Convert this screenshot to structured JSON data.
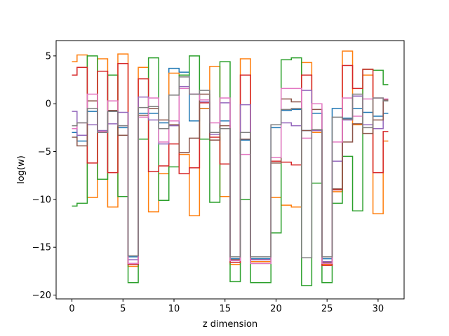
{
  "chart_data": {
    "type": "line",
    "drawstyle": "steps-mid",
    "title": "",
    "xlabel": "z dimension",
    "ylabel": "log(w)",
    "xlim": [
      -1.55,
      32.55
    ],
    "ylim": [
      -20.4,
      6.6
    ],
    "xticks": [
      0,
      5,
      10,
      15,
      20,
      25,
      30
    ],
    "yticks": [
      -20,
      -15,
      -10,
      -5,
      0,
      5
    ],
    "grid": false,
    "legend": "none",
    "x": [
      0,
      1,
      2,
      3,
      4,
      5,
      6,
      7,
      8,
      9,
      10,
      11,
      12,
      13,
      14,
      15,
      16,
      17,
      18,
      19,
      20,
      21,
      22,
      23,
      24,
      25,
      26,
      27,
      28,
      29,
      30,
      31
    ],
    "series": [
      {
        "color": "#1f77b4",
        "values": [
          -3.0,
          -3.9,
          -0.8,
          -3.0,
          -0.8,
          -2.5,
          -16.0,
          -1.0,
          -1.0,
          -2.0,
          3.7,
          3.3,
          -1.8,
          -0.5,
          -3.0,
          -1.8,
          -16.2,
          -3.8,
          -16.2,
          -16.2,
          -2.5,
          -0.7,
          -0.6,
          -2.8,
          -1.0,
          -16.2,
          -0.5,
          -1.5,
          -0.5,
          -0.9,
          -1.3,
          -1.0
        ]
      },
      {
        "color": "#ff7f0e",
        "values": [
          4.4,
          5.1,
          -9.8,
          4.7,
          -10.8,
          5.2,
          -17.0,
          3.8,
          -11.3,
          -7.3,
          3.2,
          -5.3,
          -11.7,
          -0.5,
          3.9,
          -9.7,
          -16.8,
          4.7,
          -16.5,
          -16.5,
          -9.8,
          -10.6,
          -10.8,
          4.3,
          -3.0,
          -16.8,
          -9.2,
          5.5,
          -2.2,
          3.0,
          -11.5,
          -3.9
        ]
      },
      {
        "color": "#2ca02c",
        "values": [
          -10.7,
          -10.4,
          5.0,
          -7.9,
          3.0,
          -9.7,
          -18.7,
          -3.7,
          4.8,
          -10.1,
          -6.6,
          3.0,
          5.0,
          -3.7,
          -10.3,
          4.4,
          -18.6,
          -10.0,
          -18.7,
          -18.7,
          -13.5,
          4.6,
          4.8,
          -19.0,
          -8.3,
          -18.7,
          -10.4,
          -5.5,
          -11.2,
          3.6,
          3.5,
          2.0
        ]
      },
      {
        "color": "#d62728",
        "values": [
          3.0,
          3.8,
          -6.2,
          3.4,
          -7.2,
          4.2,
          -16.8,
          2.6,
          -7.1,
          -6.5,
          -4.2,
          -7.3,
          -6.7,
          0.1,
          -3.5,
          -6.3,
          -16.6,
          3.0,
          -16.3,
          -16.3,
          -6.0,
          -6.1,
          -6.4,
          3.0,
          -2.8,
          -16.9,
          -9.0,
          4.0,
          1.6,
          3.6,
          -7.2,
          -2.9
        ]
      },
      {
        "color": "#9467bd",
        "values": [
          -0.8,
          -3.3,
          -2.2,
          -2.8,
          -2.1,
          -0.9,
          -16.3,
          0.7,
          -1.7,
          -4.2,
          -2.3,
          1.8,
          1.0,
          0.2,
          -3.2,
          0.1,
          -16.4,
          -0.1,
          -16.3,
          -16.3,
          -2.2,
          -2.0,
          -2.3,
          1.4,
          -2.8,
          -16.5,
          -6.0,
          -1.7,
          0.8,
          -2.2,
          -2.6,
          0.4
        ]
      },
      {
        "color": "#8c564b",
        "values": [
          -3.5,
          -4.4,
          0.3,
          -2.9,
          -0.7,
          -3.3,
          -16.7,
          -1.2,
          -0.5,
          -1.7,
          -2.2,
          -5.1,
          -3.6,
          1.0,
          -3.8,
          -2.3,
          -16.3,
          -3.7,
          -16.7,
          -16.7,
          -6.2,
          0.5,
          0.2,
          -2.8,
          -0.6,
          -16.6,
          -8.9,
          -4.0,
          -2.1,
          -3.1,
          -1.7,
          0.4
        ]
      },
      {
        "color": "#e377c2",
        "values": [
          -2.6,
          -2.0,
          1.0,
          -2.9,
          0.3,
          -2.3,
          -16.7,
          -1.4,
          0.6,
          -4.0,
          -1.8,
          1.6,
          1.0,
          0.4,
          -2.0,
          0.6,
          -16.4,
          -5.3,
          -16.7,
          -16.7,
          -5.6,
          1.6,
          1.6,
          -3.6,
          0.0,
          -16.7,
          -4.0,
          0.6,
          -1.3,
          0.5,
          0.6,
          0.5
        ]
      },
      {
        "color": "#7f7f7f",
        "values": [
          -2.3,
          -2.0,
          -0.5,
          -3.0,
          -0.8,
          -2.3,
          -15.9,
          -0.4,
          -0.3,
          -2.6,
          0.9,
          2.8,
          1.0,
          1.4,
          -3.0,
          -2.6,
          -16.0,
          -3.0,
          -16.0,
          -16.0,
          -2.2,
          -0.6,
          -0.5,
          -16.1,
          -2.7,
          -16.0,
          -1.4,
          -1.6,
          1.0,
          -2.5,
          0.6,
          0.3
        ]
      }
    ]
  }
}
